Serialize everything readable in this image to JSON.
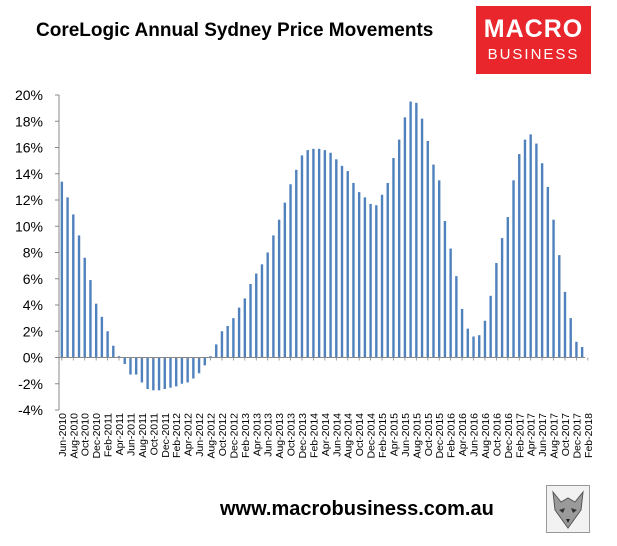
{
  "header": {
    "title": "CoreLogic Annual Sydney Price Movements"
  },
  "logo": {
    "line1": "MACRO",
    "line2": "BUSINESS",
    "color": "#e8262b"
  },
  "footer": {
    "url": "www.macrobusiness.com.au"
  },
  "wolf": {
    "icon": "wolf-logo-icon"
  },
  "chart_data": {
    "type": "bar",
    "title": "CoreLogic Annual Sydney Price Movements",
    "bar_color": "#4f81bd",
    "ylim": [
      -4,
      20
    ],
    "ytick_values": [
      -4,
      -2,
      0,
      2,
      4,
      6,
      8,
      10,
      12,
      14,
      16,
      18,
      20
    ],
    "ytick_labels": [
      "-4%",
      "-2%",
      "0%",
      "2%",
      "4%",
      "6%",
      "8%",
      "10%",
      "12%",
      "14%",
      "16%",
      "18%",
      "20%"
    ],
    "xtick_labels": [
      "Jun-2010",
      "Aug-2010",
      "Oct-2010",
      "Dec-2010",
      "Feb-2011",
      "Apr-2011",
      "Jun-2011",
      "Aug-2011",
      "Oct-2011",
      "Dec-2011",
      "Feb-2012",
      "Apr-2012",
      "Jun-2012",
      "Aug-2012",
      "Oct-2012",
      "Dec-2012",
      "Feb-2013",
      "Apr-2013",
      "Jun-2013",
      "Aug-2013",
      "Oct-2013",
      "Dec-2013",
      "Feb-2014",
      "Apr-2014",
      "Jun-2014",
      "Aug-2014",
      "Oct-2014",
      "Dec-2014",
      "Feb-2015",
      "Apr-2015",
      "Jun-2015",
      "Aug-2015",
      "Oct-2015",
      "Dec-2015",
      "Feb-2016",
      "Apr-2016",
      "Jun-2016",
      "Aug-2016",
      "Oct-2016",
      "Dec-2016",
      "Feb-2017",
      "Apr-2017",
      "Jun-2017",
      "Aug-2017",
      "Oct-2017",
      "Dec-2017",
      "Feb-2018"
    ],
    "grid": false,
    "series": [
      {
        "values": [
          13.4,
          12.2,
          10.9,
          9.3,
          7.6,
          5.9,
          4.1,
          3.1,
          2.0,
          0.9,
          0.1,
          -0.5,
          -1.3,
          -1.3,
          -1.9,
          -2.4,
          -2.5,
          -2.5,
          -2.4,
          -2.3,
          -2.2,
          -2.0,
          -1.9,
          -1.6,
          -1.2,
          -0.6,
          0.1,
          1.0,
          2.0,
          2.4,
          3.0,
          3.8,
          4.5,
          5.6,
          6.4,
          7.1,
          8.0,
          9.3,
          10.5,
          11.8,
          13.2,
          14.3,
          15.4,
          15.8,
          15.9,
          15.9,
          15.8,
          15.6,
          15.1,
          14.6,
          14.2,
          13.3,
          12.6,
          12.2,
          11.7,
          11.6,
          12.4,
          13.3,
          15.2,
          16.6,
          18.3,
          19.5,
          19.4,
          18.2,
          16.5,
          14.7,
          13.5,
          10.4,
          8.3,
          6.2,
          3.7,
          2.2,
          1.6,
          1.7,
          2.8,
          4.7,
          7.2,
          9.1,
          10.7,
          13.5,
          15.5,
          16.6,
          17.0,
          16.3,
          14.8,
          13.0,
          10.5,
          7.8,
          5.0,
          3.0,
          1.2,
          0.8
        ]
      }
    ]
  }
}
